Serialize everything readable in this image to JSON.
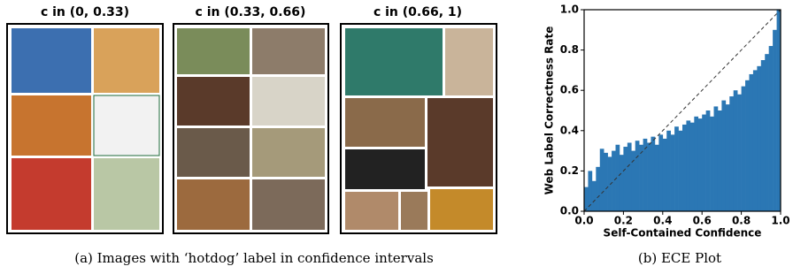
{
  "panels": [
    {
      "title": "c in (0, 0.33)"
    },
    {
      "title": "c in (0.33, 0.66)"
    },
    {
      "title": "c in (0.66, 1)"
    }
  ],
  "caption_a": "(a) Images with ‘hotdog’ label in confidence intervals",
  "caption_b": "(b) ECE Plot",
  "chart_data": {
    "type": "histogram",
    "xlabel": "Self-Contained Confidence",
    "ylabel": "Web Label Correctness Rate",
    "bins": [
      0,
      0.02,
      0.04,
      0.06,
      0.08,
      0.1,
      0.12,
      0.14,
      0.16,
      0.18,
      0.2,
      0.22,
      0.24,
      0.26,
      0.28,
      0.3,
      0.32,
      0.34,
      0.36,
      0.38,
      0.4,
      0.42,
      0.44,
      0.46,
      0.48,
      0.5,
      0.52,
      0.54,
      0.56,
      0.58,
      0.6,
      0.62,
      0.64,
      0.66,
      0.68,
      0.7,
      0.72,
      0.74,
      0.76,
      0.78,
      0.8,
      0.82,
      0.84,
      0.86,
      0.88,
      0.9,
      0.92,
      0.94,
      0.96,
      0.98,
      1
    ],
    "values": [
      0.12,
      0.2,
      0.15,
      0.22,
      0.31,
      0.29,
      0.27,
      0.3,
      0.33,
      0.28,
      0.32,
      0.34,
      0.3,
      0.35,
      0.33,
      0.36,
      0.34,
      0.37,
      0.33,
      0.38,
      0.36,
      0.4,
      0.38,
      0.42,
      0.4,
      0.43,
      0.45,
      0.44,
      0.47,
      0.46,
      0.48,
      0.5,
      0.47,
      0.52,
      0.5,
      0.55,
      0.53,
      0.57,
      0.6,
      0.58,
      0.62,
      0.65,
      0.68,
      0.7,
      0.72,
      0.75,
      0.78,
      0.82,
      0.9,
      1.0
    ],
    "color": "#2b77b4",
    "diagonal": true,
    "xlim": [
      0,
      1
    ],
    "ylim": [
      0,
      1
    ],
    "xticks": [
      {
        "value": 0,
        "label": "0.0"
      },
      0.2,
      0.4,
      0.6,
      0.8,
      {
        "value": 1,
        "label": "1.0"
      }
    ],
    "yticks": [
      {
        "value": 0,
        "label": "0.0"
      },
      0.2,
      0.4,
      0.6,
      0.8,
      {
        "value": 1,
        "label": "1.0"
      }
    ]
  }
}
